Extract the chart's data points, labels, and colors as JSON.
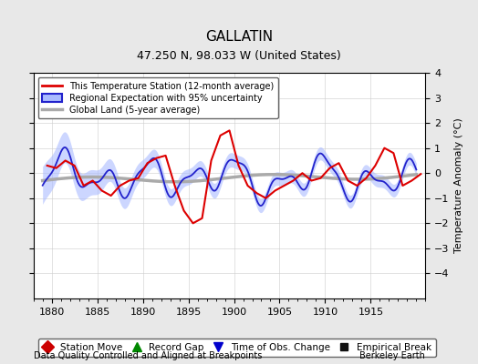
{
  "title": "GALLATIN",
  "subtitle": "47.250 N, 98.033 W (United States)",
  "xlabel_bottom": "Data Quality Controlled and Aligned at Breakpoints",
  "xlabel_right": "Berkeley Earth",
  "ylabel": "Temperature Anomaly (°C)",
  "xlim": [
    1878,
    1921
  ],
  "ylim": [
    -5,
    4
  ],
  "yticks": [
    -4,
    -3,
    -2,
    -1,
    0,
    1,
    2,
    3,
    4
  ],
  "xticks": [
    1880,
    1885,
    1890,
    1895,
    1900,
    1905,
    1910,
    1915
  ],
  "bg_color": "#e8e8e8",
  "plot_bg_color": "#ffffff",
  "regional_color": "#2222cc",
  "regional_fill_color": "#aabbff",
  "station_color": "#dd0000",
  "global_color": "#aaaaaa",
  "seed": 42
}
